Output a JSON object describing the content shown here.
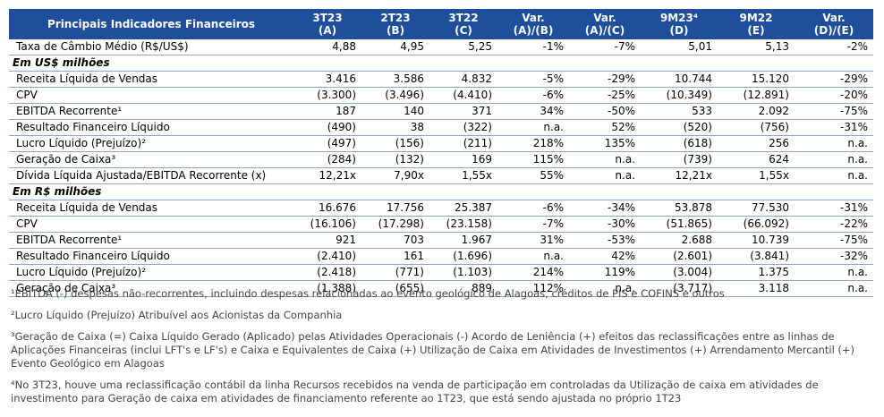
{
  "table": {
    "header_label": "Principais Indicadores Financeiros",
    "columns": [
      {
        "line1": "3T23",
        "line2": "(A)"
      },
      {
        "line1": "2T23",
        "line2": "(B)"
      },
      {
        "line1": "3T22",
        "line2": "(C)"
      },
      {
        "line1": "Var.",
        "line2": "(A)/(B)"
      },
      {
        "line1": "Var.",
        "line2": "(A)/(C)"
      },
      {
        "line1": "9M23⁴",
        "line2": "(D)"
      },
      {
        "line1": "9M22",
        "line2": "(E)"
      },
      {
        "line1": "Var.",
        "line2": "(D)/(E)"
      }
    ],
    "exchange_row": {
      "label": "Taxa de Câmbio Médio (R$/US$)",
      "values": [
        "4,88",
        "4,95",
        "5,25",
        "-1%",
        "-7%",
        "5,01",
        "5,13",
        "-2%"
      ]
    },
    "sections": [
      {
        "title": "Em US$ milhões",
        "rows": [
          {
            "label": "Receita Líquida de Vendas",
            "values": [
              "3.416",
              "3.586",
              "4.832",
              "-5%",
              "-29%",
              "10.744",
              "15.120",
              "-29%"
            ]
          },
          {
            "label": "CPV",
            "values": [
              "(3.300)",
              "(3.496)",
              "(4.410)",
              "-6%",
              "-25%",
              "(10.349)",
              "(12.891)",
              "-20%"
            ]
          },
          {
            "label": "EBITDA Recorrente¹",
            "values": [
              "187",
              "140",
              "371",
              "34%",
              "-50%",
              "533",
              "2.092",
              "-75%"
            ]
          },
          {
            "label": "Resultado Financeiro Líquido",
            "values": [
              "(490)",
              "38",
              "(322)",
              "n.a.",
              "52%",
              "(520)",
              "(756)",
              "-31%"
            ]
          },
          {
            "label": "Lucro Líquido (Prejuízo)²",
            "values": [
              "(497)",
              "(156)",
              "(211)",
              "218%",
              "135%",
              "(618)",
              "256",
              "n.a."
            ]
          },
          {
            "label": "Geração de Caixa³",
            "values": [
              "(284)",
              "(132)",
              "169",
              "115%",
              "n.a.",
              "(739)",
              "624",
              "n.a."
            ]
          },
          {
            "label": "Dívida Líquida Ajustada/EBITDA Recorrente (x)",
            "values": [
              "12,21x",
              "7,90x",
              "1,55x",
              "55%",
              "n.a.",
              "12,21x",
              "1,55x",
              "n.a."
            ]
          }
        ]
      },
      {
        "title": "Em R$ milhões",
        "rows": [
          {
            "label": "Receita Líquida de Vendas",
            "values": [
              "16.676",
              "17.756",
              "25.387",
              "-6%",
              "-34%",
              "53.878",
              "77.530",
              "-31%"
            ]
          },
          {
            "label": "CPV",
            "values": [
              "(16.106)",
              "(17.298)",
              "(23.158)",
              "-7%",
              "-30%",
              "(51.865)",
              "(66.092)",
              "-22%"
            ]
          },
          {
            "label": "EBITDA Recorrente¹",
            "values": [
              "921",
              "703",
              "1.967",
              "31%",
              "-53%",
              "2.688",
              "10.739",
              "-75%"
            ]
          },
          {
            "label": "Resultado Financeiro Líquido",
            "values": [
              "(2.410)",
              "161",
              "(1.696)",
              "n.a.",
              "42%",
              "(2.601)",
              "(3.841)",
              "-32%"
            ]
          },
          {
            "label": "Lucro Líquido (Prejuízo)²",
            "values": [
              "(2.418)",
              "(771)",
              "(1.103)",
              "214%",
              "119%",
              "(3.004)",
              "1.375",
              "n.a."
            ]
          },
          {
            "label": "Geração de Caixa³",
            "values": [
              "(1.388)",
              "(655)",
              "889",
              "112%",
              "n.a.",
              "(3.717)",
              "3.118",
              "n.a."
            ]
          }
        ]
      }
    ]
  },
  "footnotes": [
    "¹EBITDA (-) despesas não-recorrentes, incluindo despesas relacionadas ao evento geológico de Alagoas, créditos de PIS e COFINS e outros",
    "²Lucro Líquido (Prejuízo) Atribuível aos Acionistas da Companhia",
    "³Geração de Caixa (=) Caixa Líquido Gerado (Aplicado) pelas Atividades Operacionais (-) Acordo de Leniência (+) efeitos das reclassificações entre as linhas de Aplicações Financeiras (inclui LFT's e LF's) e Caixa e Equivalentes de Caixa (+) Utilização de Caixa em Atividades de Investimentos (+) Arrendamento Mercantil (+) Evento Geológico em Alagoas",
    "⁴No 3T23, houve uma reclassificação contábil da linha Recursos recebidos na venda de participação em controladas da Utilização de caixa em atividades de investimento para Geração de caixa em atividades de financiamento referente ao 1T23, que está sendo ajustada no próprio 1T23"
  ],
  "colors": {
    "header_bg": "#1f4e9b",
    "header_text": "#ffffff",
    "row_border": "#8fa7cf",
    "note_text": "#444444"
  }
}
